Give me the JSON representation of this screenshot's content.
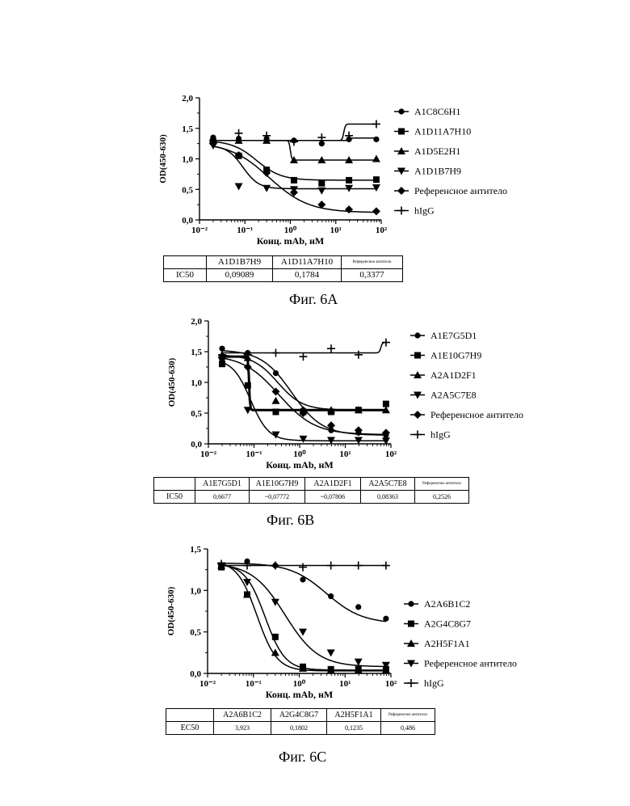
{
  "panels": [
    {
      "caption": "Фиг. 6A",
      "table": {
        "header": [
          "",
          "A1D1B7H9",
          "A1D11A7H10",
          "Референсное антитело"
        ],
        "row": [
          "IC50",
          "0,09089",
          "0,1784",
          "0,3377"
        ]
      }
    },
    {
      "caption": "Фиг. 6B",
      "table": {
        "header": [
          "",
          "A1E7G5D1",
          "A1E10G7H9",
          "A2A1D2F1",
          "A2A5C7E8",
          "Референсное антитело"
        ],
        "row": [
          "IC50",
          "0,6677",
          "~0,07772",
          "~0,07806",
          "0,08363",
          "0,2526"
        ]
      }
    },
    {
      "caption": "Фиг. 6C",
      "table": {
        "header": [
          "",
          "A2A6B1C2",
          "A2G4C8G7",
          "A2H5F1A1",
          "Референсное антитело"
        ],
        "row": [
          "EC50",
          "3,923",
          "0,1802",
          "0,1235",
          "0,486"
        ]
      }
    }
  ],
  "chart_data": [
    {
      "type": "scatter",
      "xlabel": "Конц. mAb, нМ",
      "ylabel": "OD(450-630)",
      "xscale": "log",
      "xlim": [
        0.01,
        100
      ],
      "ylim": [
        0,
        2.0
      ],
      "xticks": [
        "10⁻²",
        "10⁻¹",
        "10⁰",
        "10¹",
        "10²"
      ],
      "yticks": [
        "0,0",
        "0,5",
        "1,0",
        "1,5",
        "2,0"
      ],
      "legend_position": "right",
      "series": [
        {
          "name": "A1C8C6H1",
          "marker": "circle",
          "x": [
            0.02,
            0.073,
            0.3,
            1.2,
            4.9,
            19.5,
            78
          ],
          "y": [
            1.35,
            1.33,
            1.33,
            1.3,
            1.25,
            1.32,
            1.32
          ]
        },
        {
          "name": "A1D11A7H10",
          "marker": "square",
          "x": [
            0.02,
            0.073,
            0.3,
            1.2,
            4.9,
            19.5,
            78
          ],
          "y": [
            1.28,
            1.05,
            0.82,
            0.65,
            0.6,
            0.65,
            0.66
          ]
        },
        {
          "name": "A1D5E2H1",
          "marker": "triangle-up",
          "x": [
            0.02,
            0.073,
            0.3,
            1.2,
            4.9,
            19.5,
            78
          ],
          "y": [
            1.3,
            1.3,
            1.3,
            0.98,
            0.98,
            0.98,
            1.0
          ]
        },
        {
          "name": "A1D1B7H9",
          "marker": "triangle-down",
          "x": [
            0.02,
            0.073,
            0.3,
            1.2,
            4.9,
            19.5,
            78
          ],
          "y": [
            1.22,
            0.55,
            0.52,
            0.5,
            0.48,
            0.52,
            0.53
          ]
        },
        {
          "name": "Референсное антитело",
          "marker": "diamond",
          "x": [
            0.02,
            0.073,
            0.3,
            1.2,
            4.9,
            19.5,
            78
          ],
          "y": [
            1.25,
            1.06,
            0.77,
            0.45,
            0.25,
            0.17,
            0.14
          ]
        },
        {
          "name": "hIgG",
          "marker": "plus",
          "x": [
            0.02,
            0.073,
            0.3,
            1.2,
            4.9,
            19.5,
            78
          ],
          "y": [
            1.3,
            1.42,
            1.38,
            1.28,
            1.35,
            1.38,
            1.57
          ]
        }
      ]
    },
    {
      "type": "scatter",
      "xlabel": "Конц. mAb, нМ",
      "ylabel": "OD(450-630)",
      "xscale": "log",
      "xlim": [
        0.01,
        100
      ],
      "ylim": [
        0,
        2.0
      ],
      "xticks": [
        "10⁻²",
        "10⁻¹",
        "10⁰",
        "10¹",
        "10²"
      ],
      "yticks": [
        "0,0",
        "0,5",
        "1,0",
        "1,5",
        "2,0"
      ],
      "legend_position": "right",
      "series": [
        {
          "name": "A1E7G5D1",
          "marker": "circle",
          "x": [
            0.02,
            0.073,
            0.3,
            1.2,
            4.9,
            19.5,
            78
          ],
          "y": [
            1.55,
            1.48,
            1.15,
            0.55,
            0.22,
            0.18,
            0.14
          ]
        },
        {
          "name": "A1E10G7H9",
          "marker": "square",
          "x": [
            0.02,
            0.073,
            0.3,
            1.2,
            4.9,
            19.5,
            78
          ],
          "y": [
            1.3,
            0.95,
            0.52,
            0.52,
            0.52,
            0.55,
            0.65
          ]
        },
        {
          "name": "A2A1D2F1",
          "marker": "triangle-up",
          "x": [
            0.02,
            0.073,
            0.3,
            1.2,
            4.9,
            19.5,
            78
          ],
          "y": [
            1.45,
            1.4,
            0.7,
            0.55,
            0.55,
            0.55,
            0.55
          ]
        },
        {
          "name": "A2A5C7E8",
          "marker": "triangle-down",
          "x": [
            0.02,
            0.073,
            0.3,
            1.2,
            4.9,
            19.5,
            78
          ],
          "y": [
            1.35,
            0.55,
            0.15,
            0.08,
            0.06,
            0.06,
            0.05
          ]
        },
        {
          "name": "Референсное антитело",
          "marker": "diamond",
          "x": [
            0.02,
            0.073,
            0.3,
            1.2,
            4.9,
            19.5,
            78
          ],
          "y": [
            1.42,
            1.25,
            0.85,
            0.5,
            0.3,
            0.22,
            0.18
          ]
        },
        {
          "name": "hIgG",
          "marker": "plus",
          "x": [
            0.02,
            0.073,
            0.3,
            1.2,
            4.9,
            19.5,
            78
          ],
          "y": [
            1.45,
            1.45,
            1.48,
            1.42,
            1.55,
            1.45,
            1.65
          ]
        }
      ]
    },
    {
      "type": "scatter",
      "xlabel": "Конц. mAb, нМ",
      "ylabel": "OD(450-630)",
      "xscale": "log",
      "xlim": [
        0.01,
        100
      ],
      "ylim": [
        0,
        1.5
      ],
      "xticks": [
        "10⁻²",
        "10⁻¹",
        "10⁰",
        "10¹",
        "10²"
      ],
      "yticks": [
        "0,0",
        "0,5",
        "1,0",
        "1,5"
      ],
      "legend_position": "right",
      "series": [
        {
          "name": "A2A6B1C2",
          "marker": "circle",
          "x": [
            0.02,
            0.073,
            0.3,
            1.2,
            4.9,
            19.5,
            78
          ],
          "y": [
            1.3,
            1.35,
            1.3,
            1.13,
            0.93,
            0.8,
            0.66
          ]
        },
        {
          "name": "A2G4C8G7",
          "marker": "square",
          "x": [
            0.02,
            0.073,
            0.3,
            1.2,
            4.9,
            19.5,
            78
          ],
          "y": [
            1.28,
            0.95,
            0.44,
            0.08,
            0.05,
            0.05,
            0.05
          ]
        },
        {
          "name": "A2H5F1A1",
          "marker": "triangle-up",
          "x": [
            0.02,
            0.073,
            0.3,
            1.2,
            4.9,
            19.5,
            78
          ],
          "y": [
            1.3,
            0.95,
            0.25,
            0.06,
            0.04,
            0.04,
            0.04
          ]
        },
        {
          "name": "Референсное антитело",
          "marker": "triangle-down",
          "x": [
            0.02,
            0.073,
            0.3,
            1.2,
            4.9,
            19.5,
            78
          ],
          "y": [
            1.3,
            1.1,
            0.86,
            0.5,
            0.25,
            0.14,
            0.1
          ]
        },
        {
          "name": "hIgG",
          "marker": "plus",
          "x": [
            0.02,
            0.073,
            0.3,
            1.2,
            4.9,
            19.5,
            78
          ],
          "y": [
            1.32,
            1.3,
            1.3,
            1.28,
            1.3,
            1.3,
            1.3
          ]
        }
      ]
    }
  ]
}
